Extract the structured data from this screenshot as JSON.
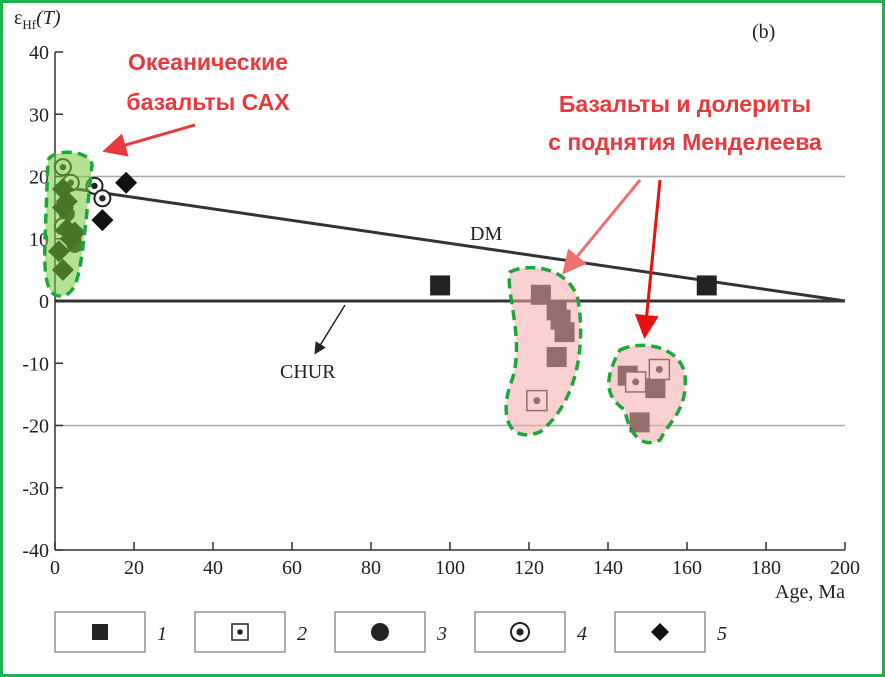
{
  "chart_data": {
    "type": "scatter",
    "panel_label": "(b)",
    "y_label": "ε",
    "y_label_sub": "Hf",
    "y_label_tail": "(T)",
    "x_label": "Age, Ma",
    "xlim": [
      0,
      200
    ],
    "ylim": [
      -40,
      40
    ],
    "xticks": [
      0,
      20,
      40,
      60,
      80,
      100,
      120,
      140,
      160,
      180,
      200
    ],
    "yticks": [
      -40,
      -30,
      -20,
      -10,
      0,
      10,
      20,
      30,
      40
    ],
    "grid_y": [
      20,
      -20
    ],
    "reference_lines": [
      {
        "name": "DM",
        "x": [
          0,
          200
        ],
        "values": [
          18.5,
          0
        ]
      },
      {
        "name": "CHUR",
        "x": [
          0,
          200
        ],
        "values": [
          0,
          0
        ]
      }
    ],
    "series": [
      {
        "name": "1",
        "marker": "square",
        "color": "#222222",
        "x": [
          97.5,
          165,
          123,
          127,
          128,
          129,
          127,
          145,
          152,
          148
        ],
        "values": [
          2.5,
          2.5,
          1,
          -1.5,
          -3,
          -5,
          -9,
          -12,
          -14,
          -19.5
        ]
      },
      {
        "name": "2",
        "marker": "square-dot",
        "color": "#222222",
        "x": [
          122,
          147,
          153
        ],
        "values": [
          -16,
          -13,
          -11
        ]
      },
      {
        "name": "3",
        "marker": "circle",
        "color": "#222222",
        "x": [
          3,
          5
        ],
        "values": [
          14,
          9
        ]
      },
      {
        "name": "4",
        "marker": "circle-dot",
        "color": "#222222",
        "x": [
          10,
          12,
          2,
          4,
          2
        ],
        "values": [
          18.5,
          16.5,
          21.5,
          19,
          12
        ]
      },
      {
        "name": "5",
        "marker": "diamond",
        "color": "#111111",
        "x": [
          18,
          12,
          2,
          2,
          3,
          5,
          1,
          2,
          4,
          3
        ],
        "values": [
          19,
          13,
          18,
          15,
          11.5,
          11,
          8,
          5,
          10,
          16
        ]
      }
    ],
    "annotations": [
      {
        "lines": [
          "Океанические",
          "базальты САХ"
        ]
      },
      {
        "lines": [
          "Базальты и долериты",
          "с поднятия Менделеева"
        ]
      }
    ]
  }
}
